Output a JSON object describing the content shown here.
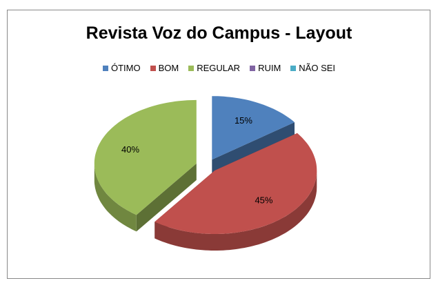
{
  "chart_data": {
    "type": "pie3d",
    "title": "Revista Voz do Campus - Layout",
    "categories": [
      "ÓTIMO",
      "BOM",
      "REGULAR",
      "RUIM",
      "NÃO SEI"
    ],
    "values": [
      15,
      45,
      40,
      0,
      0
    ],
    "value_labels": [
      "15%",
      "45%",
      "40%",
      null,
      null
    ],
    "colors": [
      "#4f81bd",
      "#c0504d",
      "#9bbb59",
      "#8064a2",
      "#4bacc6"
    ],
    "legend": "top"
  }
}
